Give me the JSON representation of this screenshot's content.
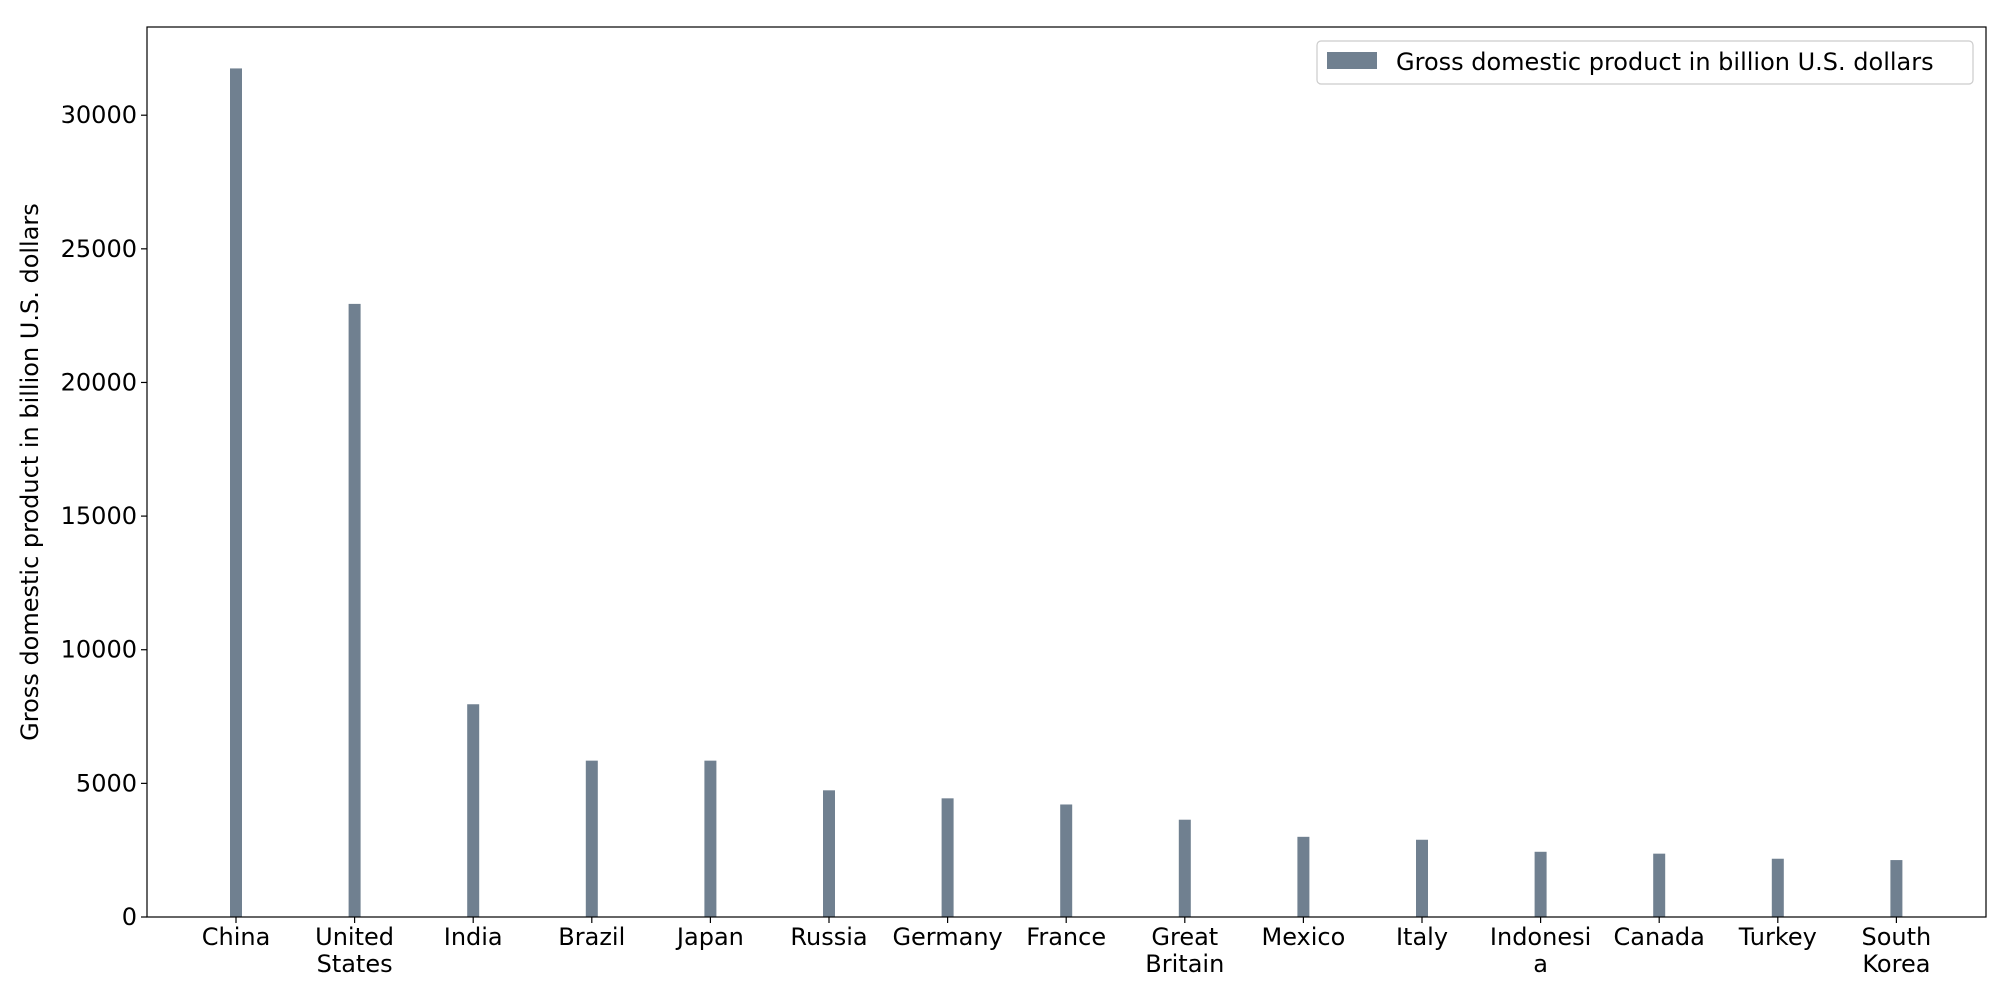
{
  "chart_data": {
    "type": "bar",
    "categories": [
      "China",
      "United States",
      "India",
      "Brazil",
      "Japan",
      "Russia",
      "Germany",
      "France",
      "Great Britain",
      "Mexico",
      "Italy",
      "Indonesia",
      "Canada",
      "Turkey",
      "South Korea"
    ],
    "category_labels": [
      [
        "China"
      ],
      [
        "United",
        "States"
      ],
      [
        "India"
      ],
      [
        "Brazil"
      ],
      [
        "Japan"
      ],
      [
        "Russia"
      ],
      [
        "Germany"
      ],
      [
        "France"
      ],
      [
        "Great",
        "Britain"
      ],
      [
        "Mexico"
      ],
      [
        "Italy"
      ],
      [
        "Indonesi",
        "a"
      ],
      [
        "Canada"
      ],
      [
        "Turkey"
      ],
      [
        "South",
        "Korea"
      ]
    ],
    "series": [
      {
        "name": "Gross domestic product in billion U.S. dollars",
        "color": "#708090",
        "values": [
          31750,
          22940,
          7960,
          5850,
          5850,
          4740,
          4440,
          4210,
          3640,
          3000,
          2890,
          2440,
          2370,
          2180,
          2130
        ]
      }
    ],
    "ylabel": "Gross domestic product in billion U.S. dollars",
    "xlabel": "",
    "ylim": [
      0,
      33300
    ],
    "yticks": [
      0,
      5000,
      10000,
      15000,
      20000,
      25000,
      30000
    ],
    "grid": false,
    "legend_position": "top-right"
  }
}
